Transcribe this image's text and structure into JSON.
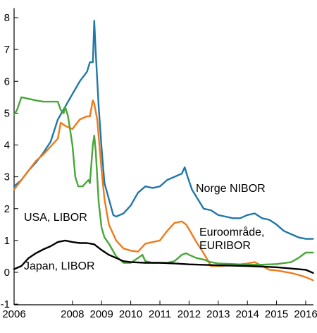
{
  "chart_data": {
    "type": "line",
    "title": "",
    "xlabel": "",
    "ylabel": "",
    "xlim": [
      2006.0,
      2016.35
    ],
    "ylim": [
      -1,
      8
    ],
    "x_ticks": [
      2006,
      2008,
      2009,
      2010,
      2011,
      2012,
      2013,
      2014,
      2015,
      2016
    ],
    "x_tick_labels": [
      "2006",
      "2008",
      "2009",
      "2010",
      "2011",
      "2012",
      "2013",
      "2014",
      "2015",
      "2016"
    ],
    "y_ticks": [
      -1,
      0,
      1,
      2,
      3,
      4,
      5,
      6,
      7,
      8
    ],
    "y_tick_labels": [
      "-1",
      "0",
      "1",
      "2",
      "3",
      "4",
      "5",
      "6",
      "7",
      "8"
    ],
    "grid": false,
    "legend": "inline labels",
    "series": [
      {
        "name": "Norge NIBOR",
        "color": "#1f77a8",
        "x": [
          2006.0,
          2006.25,
          2006.5,
          2006.75,
          2007.0,
          2007.25,
          2007.5,
          2007.75,
          2008.0,
          2008.25,
          2008.5,
          2008.6,
          2008.7,
          2008.75,
          2008.8,
          2008.9,
          2009.0,
          2009.1,
          2009.25,
          2009.4,
          2009.5,
          2009.75,
          2010.0,
          2010.25,
          2010.5,
          2010.75,
          2011.0,
          2011.25,
          2011.5,
          2011.75,
          2011.85,
          2011.95,
          2012.1,
          2012.3,
          2012.5,
          2012.75,
          2013.0,
          2013.25,
          2013.5,
          2013.75,
          2014.0,
          2014.25,
          2014.5,
          2014.75,
          2015.0,
          2015.25,
          2015.5,
          2015.75,
          2016.0,
          2016.25
        ],
        "y": [
          2.7,
          2.9,
          3.2,
          3.45,
          3.75,
          4.1,
          4.8,
          5.2,
          5.6,
          6.0,
          6.3,
          6.6,
          6.6,
          7.9,
          6.9,
          5.2,
          3.9,
          2.8,
          2.3,
          1.8,
          1.75,
          1.85,
          2.1,
          2.5,
          2.7,
          2.65,
          2.7,
          2.9,
          3.0,
          3.1,
          3.3,
          3.0,
          2.6,
          2.3,
          2.0,
          1.95,
          1.8,
          1.75,
          1.7,
          1.7,
          1.8,
          1.85,
          1.7,
          1.65,
          1.5,
          1.3,
          1.2,
          1.1,
          1.05,
          1.05
        ]
      },
      {
        "name": "Euroområde, EURIBOR",
        "color": "#ee7a1a",
        "x": [
          2006.0,
          2006.25,
          2006.5,
          2006.75,
          2007.0,
          2007.25,
          2007.5,
          2007.6,
          2007.75,
          2008.0,
          2008.25,
          2008.5,
          2008.6,
          2008.7,
          2008.75,
          2008.85,
          2009.0,
          2009.1,
          2009.25,
          2009.5,
          2009.75,
          2010.0,
          2010.25,
          2010.5,
          2010.75,
          2011.0,
          2011.25,
          2011.5,
          2011.75,
          2011.9,
          2012.0,
          2012.25,
          2012.5,
          2012.75,
          2013.0,
          2013.5,
          2014.0,
          2014.25,
          2014.5,
          2014.75,
          2015.0,
          2015.5,
          2015.75,
          2016.0,
          2016.25
        ],
        "y": [
          2.6,
          2.9,
          3.2,
          3.5,
          3.7,
          3.95,
          4.2,
          4.7,
          4.6,
          4.5,
          4.8,
          4.9,
          4.9,
          5.4,
          5.3,
          4.8,
          3.2,
          2.3,
          1.5,
          1.0,
          0.75,
          0.68,
          0.65,
          0.9,
          0.95,
          1.0,
          1.3,
          1.55,
          1.6,
          1.5,
          1.35,
          0.95,
          0.6,
          0.2,
          0.2,
          0.22,
          0.28,
          0.32,
          0.2,
          0.08,
          0.06,
          -0.02,
          -0.08,
          -0.15,
          -0.25
        ]
      },
      {
        "name": "USA, LIBOR",
        "color": "#4aa53a",
        "x": [
          2006.0,
          2006.1,
          2006.25,
          2006.5,
          2006.75,
          2007.0,
          2007.25,
          2007.5,
          2007.6,
          2007.7,
          2007.75,
          2007.85,
          2008.0,
          2008.1,
          2008.2,
          2008.35,
          2008.45,
          2008.55,
          2008.6,
          2008.7,
          2008.75,
          2008.8,
          2008.9,
          2009.0,
          2009.1,
          2009.25,
          2009.5,
          2009.75,
          2010.0,
          2010.25,
          2010.4,
          2010.5,
          2010.75,
          2011.0,
          2011.25,
          2011.5,
          2011.75,
          2011.9,
          2012.0,
          2012.25,
          2012.5,
          2012.75,
          2013.0,
          2013.5,
          2014.0,
          2014.5,
          2015.0,
          2015.5,
          2015.75,
          2016.0,
          2016.25
        ],
        "y": [
          4.95,
          5.1,
          5.5,
          5.45,
          5.4,
          5.36,
          5.36,
          5.36,
          5.1,
          5.0,
          5.2,
          4.9,
          4.0,
          3.0,
          2.7,
          2.7,
          2.8,
          2.9,
          2.8,
          4.0,
          4.3,
          3.8,
          2.2,
          1.4,
          1.1,
          0.9,
          0.5,
          0.3,
          0.3,
          0.45,
          0.55,
          0.35,
          0.3,
          0.3,
          0.3,
          0.35,
          0.55,
          0.6,
          0.55,
          0.45,
          0.4,
          0.32,
          0.28,
          0.26,
          0.24,
          0.24,
          0.26,
          0.32,
          0.45,
          0.62,
          0.62
        ]
      },
      {
        "name": "Japan, LIBOR",
        "color": "#000000",
        "x": [
          2006.0,
          2006.25,
          2006.5,
          2006.75,
          2007.0,
          2007.25,
          2007.5,
          2007.75,
          2008.0,
          2008.25,
          2008.5,
          2008.75,
          2009.0,
          2009.25,
          2009.5,
          2009.75,
          2010.0,
          2010.5,
          2011.0,
          2011.5,
          2012.0,
          2013.0,
          2014.0,
          2015.0,
          2016.0,
          2016.25
        ],
        "y": [
          0.1,
          0.2,
          0.45,
          0.6,
          0.72,
          0.82,
          0.95,
          1.0,
          0.95,
          0.92,
          0.92,
          0.88,
          0.7,
          0.55,
          0.45,
          0.35,
          0.32,
          0.3,
          0.3,
          0.28,
          0.25,
          0.22,
          0.2,
          0.16,
          0.08,
          -0.02
        ]
      }
    ],
    "annotations": [
      {
        "text": "Norge NIBOR",
        "series": "Norge NIBOR"
      },
      {
        "text": "USA, LIBOR",
        "series": "USA, LIBOR"
      },
      {
        "text": "Euroområde,",
        "series": "Euroområde, EURIBOR"
      },
      {
        "text": "EURIBOR",
        "series": "Euroområde, EURIBOR"
      },
      {
        "text": "Japan, LIBOR",
        "series": "Japan, LIBOR"
      }
    ]
  }
}
